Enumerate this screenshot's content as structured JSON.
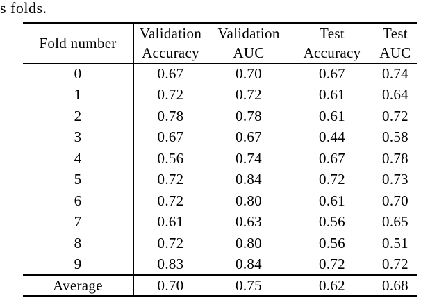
{
  "page": {
    "caption_fragment": "s folds."
  },
  "table": {
    "row_header_label": "Fold number",
    "column_groups": [
      {
        "line1": "Validation",
        "line2": "Accuracy"
      },
      {
        "line1": "Validation",
        "line2": "AUC"
      },
      {
        "line1": "Test",
        "line2": "Accuracy"
      },
      {
        "line1": "Test",
        "line2": "AUC"
      }
    ],
    "rows": [
      {
        "fold": "0",
        "values": [
          "0.67",
          "0.70",
          "0.67",
          "0.74"
        ]
      },
      {
        "fold": "1",
        "values": [
          "0.72",
          "0.72",
          "0.61",
          "0.64"
        ]
      },
      {
        "fold": "2",
        "values": [
          "0.78",
          "0.78",
          "0.61",
          "0.72"
        ]
      },
      {
        "fold": "3",
        "values": [
          "0.67",
          "0.67",
          "0.44",
          "0.58"
        ]
      },
      {
        "fold": "4",
        "values": [
          "0.56",
          "0.74",
          "0.67",
          "0.78"
        ]
      },
      {
        "fold": "5",
        "values": [
          "0.72",
          "0.84",
          "0.72",
          "0.73"
        ]
      },
      {
        "fold": "6",
        "values": [
          "0.72",
          "0.80",
          "0.61",
          "0.70"
        ]
      },
      {
        "fold": "7",
        "values": [
          "0.61",
          "0.63",
          "0.56",
          "0.65"
        ]
      },
      {
        "fold": "8",
        "values": [
          "0.72",
          "0.80",
          "0.56",
          "0.51"
        ]
      },
      {
        "fold": "9",
        "values": [
          "0.83",
          "0.84",
          "0.72",
          "0.72"
        ]
      }
    ],
    "footer": {
      "label": "Average",
      "values": [
        "0.70",
        "0.75",
        "0.62",
        "0.68"
      ]
    }
  },
  "chart_data": {
    "type": "table",
    "title": "",
    "columns": [
      "Fold number",
      "Validation Accuracy",
      "Validation AUC",
      "Test Accuracy",
      "Test AUC"
    ],
    "rows": [
      [
        "0",
        "0.67",
        "0.70",
        "0.67",
        "0.74"
      ],
      [
        "1",
        "0.72",
        "0.72",
        "0.61",
        "0.64"
      ],
      [
        "2",
        "0.78",
        "0.78",
        "0.61",
        "0.72"
      ],
      [
        "3",
        "0.67",
        "0.67",
        "0.44",
        "0.58"
      ],
      [
        "4",
        "0.56",
        "0.74",
        "0.67",
        "0.78"
      ],
      [
        "5",
        "0.72",
        "0.84",
        "0.72",
        "0.73"
      ],
      [
        "6",
        "0.72",
        "0.80",
        "0.61",
        "0.70"
      ],
      [
        "7",
        "0.61",
        "0.63",
        "0.56",
        "0.65"
      ],
      [
        "8",
        "0.72",
        "0.80",
        "0.56",
        "0.51"
      ],
      [
        "9",
        "0.83",
        "0.84",
        "0.72",
        "0.72"
      ],
      [
        "Average",
        "0.70",
        "0.75",
        "0.62",
        "0.68"
      ]
    ],
    "text_color": "#000000",
    "background_color": "#ffffff"
  }
}
